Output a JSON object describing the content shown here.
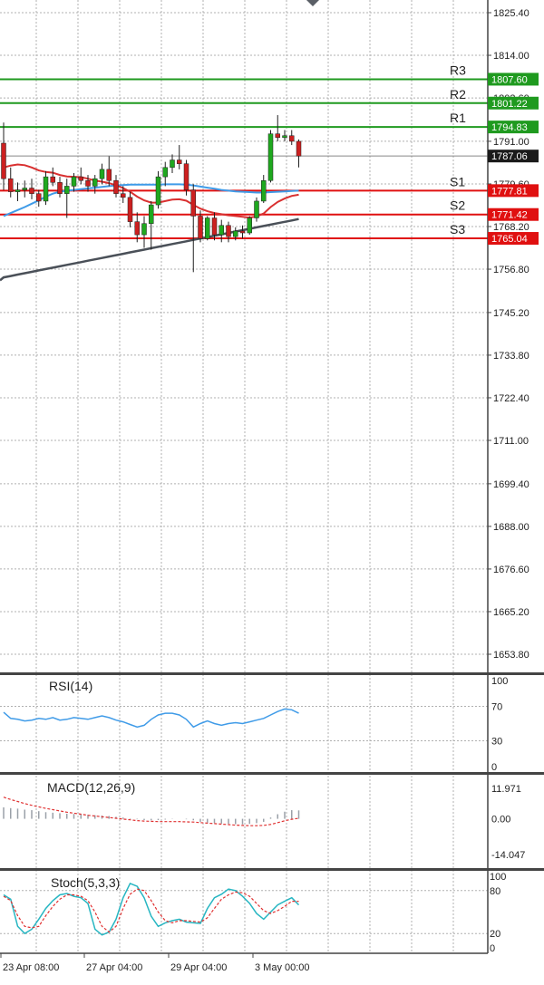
{
  "colors": {
    "background": "#ffffff",
    "grid": "#b0b0b0",
    "frame": "#444444",
    "bull_candle": "#1fa81f",
    "bear_candle": "#cc2020",
    "wick": "#202020",
    "resistance": "#1f9a1f",
    "support": "#e01010",
    "ma_slow": "#4a5058",
    "ma_mid": "#3f9be8",
    "ma_fast": "#d93030",
    "rsi_line": "#3f9be8",
    "macd_hist": "#9aa0a8",
    "macd_signal": "#e03030",
    "stoch_main": "#27b6c2",
    "stoch_signal": "#e03030",
    "current_price_line": "#888888"
  },
  "price_axis": {
    "ticks": [
      "1825.40",
      "1814.00",
      "1802.60",
      "1791.00",
      "1779.60",
      "1768.20",
      "1756.80",
      "1745.20",
      "1733.80",
      "1722.40",
      "1711.00",
      "1699.40",
      "1688.00",
      "1676.60",
      "1665.20",
      "1653.80"
    ]
  },
  "levels": [
    {
      "name": "R3",
      "value": 1807.6,
      "label": "1807.60",
      "kind": "resistance"
    },
    {
      "name": "R2",
      "value": 1801.22,
      "label": "1801.22",
      "kind": "resistance"
    },
    {
      "name": "R1",
      "value": 1794.83,
      "label": "1794.83",
      "kind": "resistance"
    },
    {
      "name": "S1",
      "value": 1777.81,
      "label": "1777.81",
      "kind": "support"
    },
    {
      "name": "S2",
      "value": 1771.42,
      "label": "1771.42",
      "kind": "support"
    },
    {
      "name": "S3",
      "value": 1765.04,
      "label": "1765.04",
      "kind": "support"
    }
  ],
  "current_price": {
    "value": 1787.06,
    "label": "1787.06"
  },
  "x_axis": {
    "labels": [
      "23 Apr 08:00",
      "27 Apr 04:00",
      "29 Apr 04:00",
      "3 May 00:00"
    ]
  },
  "panes": {
    "rsi": {
      "title": "RSI(14)",
      "ticks": [
        "100",
        "70",
        "30",
        "0"
      ]
    },
    "macd": {
      "title": "MACD(12,26,9)",
      "ticks": [
        "11.971",
        "0.00",
        "-14.047"
      ]
    },
    "stoch": {
      "title": "Stoch(5,3,3)",
      "ticks": [
        "100",
        "80",
        "20",
        "0"
      ]
    }
  },
  "chart_data": {
    "type": "candlestick",
    "title": "",
    "ylim": [
      1649.0,
      1827.0
    ],
    "candles": [
      [
        1790.5,
        1796.0,
        1778.0,
        1781.0
      ],
      [
        1781.0,
        1784.0,
        1776.0,
        1777.5
      ],
      [
        1777.5,
        1780.0,
        1775.0,
        1778.0
      ],
      [
        1778.0,
        1780.5,
        1776.0,
        1778.5
      ],
      [
        1778.5,
        1781.0,
        1775.5,
        1777.0
      ],
      [
        1777.0,
        1778.0,
        1773.5,
        1775.0
      ],
      [
        1775.0,
        1783.0,
        1774.0,
        1781.5
      ],
      [
        1781.5,
        1784.0,
        1779.0,
        1780.0
      ],
      [
        1780.0,
        1781.5,
        1776.0,
        1777.0
      ],
      [
        1777.0,
        1781.0,
        1770.5,
        1779.0
      ],
      [
        1779.0,
        1782.5,
        1777.5,
        1781.5
      ],
      [
        1781.5,
        1784.0,
        1779.5,
        1780.5
      ],
      [
        1780.5,
        1782.0,
        1777.5,
        1779.0
      ],
      [
        1779.0,
        1782.0,
        1777.0,
        1781.0
      ],
      [
        1781.0,
        1785.0,
        1779.5,
        1783.5
      ],
      [
        1783.5,
        1787.0,
        1779.0,
        1780.5
      ],
      [
        1780.5,
        1782.0,
        1776.0,
        1777.0
      ],
      [
        1777.0,
        1779.0,
        1774.5,
        1776.0
      ],
      [
        1776.0,
        1777.5,
        1768.0,
        1769.5
      ],
      [
        1769.5,
        1772.0,
        1764.0,
        1766.0
      ],
      [
        1766.0,
        1771.0,
        1762.5,
        1769.0
      ],
      [
        1769.0,
        1775.0,
        1762.0,
        1774.0
      ],
      [
        1774.0,
        1783.0,
        1773.0,
        1781.5
      ],
      [
        1781.5,
        1785.5,
        1779.0,
        1784.0
      ],
      [
        1784.0,
        1787.5,
        1782.5,
        1786.0
      ],
      [
        1786.0,
        1790.0,
        1783.5,
        1785.0
      ],
      [
        1785.0,
        1786.0,
        1776.5,
        1778.0
      ],
      [
        1778.0,
        1779.5,
        1756.0,
        1771.0
      ],
      [
        1771.0,
        1772.5,
        1764.0,
        1765.0
      ],
      [
        1765.0,
        1771.0,
        1764.5,
        1770.5
      ],
      [
        1770.5,
        1772.0,
        1764.5,
        1766.0
      ],
      [
        1766.0,
        1770.0,
        1764.0,
        1768.5
      ],
      [
        1768.5,
        1769.5,
        1764.0,
        1765.5
      ],
      [
        1765.5,
        1768.0,
        1764.5,
        1767.0
      ],
      [
        1767.0,
        1768.5,
        1765.0,
        1766.5
      ],
      [
        1766.5,
        1771.0,
        1766.0,
        1770.5
      ],
      [
        1770.5,
        1776.0,
        1769.5,
        1775.0
      ],
      [
        1775.0,
        1782.0,
        1774.5,
        1780.5
      ],
      [
        1780.5,
        1794.0,
        1780.0,
        1793.0
      ],
      [
        1793.0,
        1798.0,
        1791.0,
        1792.0
      ],
      [
        1792.0,
        1794.0,
        1791.0,
        1792.5
      ],
      [
        1792.5,
        1794.0,
        1790.0,
        1791.0
      ],
      [
        1791.0,
        1791.5,
        1784.0,
        1787.06
      ]
    ],
    "ma_fast": [
      1784.0,
      1784.5,
      1784.8,
      1784.6,
      1784.0,
      1783.2,
      1782.8,
      1782.6,
      1782.0,
      1781.6,
      1781.5,
      1781.4,
      1781.0,
      1780.5,
      1780.2,
      1779.8,
      1779.2,
      1778.5,
      1777.5,
      1776.2,
      1775.2,
      1774.6,
      1774.6,
      1775.0,
      1775.4,
      1775.5,
      1775.1,
      1774.0,
      1773.0,
      1772.3,
      1771.8,
      1771.5,
      1771.2,
      1771.0,
      1770.8,
      1770.6,
      1770.9,
      1771.7,
      1773.4,
      1774.8,
      1775.7,
      1776.4,
      1776.7
    ],
    "ma_mid": [
      1771.0,
      1771.8,
      1772.6,
      1773.4,
      1774.3,
      1775.2,
      1776.2,
      1777.0,
      1777.5,
      1777.8,
      1778.0,
      1778.2,
      1778.4,
      1778.6,
      1778.8,
      1779.0,
      1779.2,
      1779.3,
      1779.4,
      1779.4,
      1779.4,
      1779.4,
      1779.4,
      1779.5,
      1779.5,
      1779.5,
      1779.4,
      1779.2,
      1778.9,
      1778.6,
      1778.3,
      1778.0,
      1777.8,
      1777.6,
      1777.5,
      1777.4,
      1777.3,
      1777.3,
      1777.4,
      1777.5,
      1777.6,
      1777.7,
      1777.8
    ]
  },
  "indicators": {
    "rsi": [
      63,
      56,
      55,
      53,
      54,
      56,
      55,
      57,
      54,
      55,
      57,
      56,
      55,
      57,
      59,
      57,
      54,
      52,
      49,
      46,
      48,
      55,
      60,
      62,
      62,
      60,
      55,
      46,
      50,
      53,
      50,
      48,
      50,
      51,
      50,
      52,
      54,
      56,
      60,
      64,
      67,
      66,
      62
    ],
    "macd_hist": [
      4.5,
      4.2,
      4.0,
      3.6,
      3.4,
      3.0,
      2.6,
      2.4,
      2.2,
      2.0,
      1.9,
      1.8,
      1.6,
      1.4,
      1.3,
      1.1,
      0.8,
      0.5,
      0.2,
      -0.2,
      -0.5,
      -0.6,
      -0.5,
      -0.3,
      -0.1,
      0.0,
      -0.2,
      -0.6,
      -1.2,
      -1.5,
      -1.7,
      -1.9,
      -2.0,
      -2.1,
      -2.2,
      -2.0,
      -1.7,
      -1.2,
      0.5,
      1.8,
      2.8,
      3.4,
      3.3
    ],
    "macd_signal": [
      8.5,
      7.6,
      6.8,
      6.0,
      5.3,
      4.7,
      4.1,
      3.6,
      3.1,
      2.6,
      2.2,
      1.8,
      1.4,
      1.1,
      0.8,
      0.5,
      0.2,
      -0.1,
      -0.4,
      -0.7,
      -0.9,
      -1.0,
      -1.1,
      -1.1,
      -1.1,
      -1.1,
      -1.2,
      -1.3,
      -1.5,
      -1.7,
      -1.9,
      -2.1,
      -2.3,
      -2.5,
      -2.6,
      -2.7,
      -2.7,
      -2.6,
      -2.2,
      -1.5,
      -0.8,
      -0.2,
      0.2
    ],
    "stoch_k": [
      74,
      68,
      30,
      20,
      26,
      40,
      55,
      66,
      74,
      76,
      72,
      70,
      62,
      26,
      18,
      22,
      40,
      70,
      90,
      86,
      70,
      44,
      30,
      35,
      38,
      40,
      36,
      35,
      34,
      55,
      70,
      75,
      82,
      80,
      72,
      62,
      48,
      40,
      50,
      60,
      65,
      70,
      60
    ],
    "stoch_d": [
      72,
      66,
      45,
      30,
      28,
      30,
      45,
      58,
      68,
      74,
      74,
      72,
      66,
      50,
      30,
      22,
      30,
      55,
      75,
      82,
      80,
      66,
      50,
      38,
      35,
      38,
      38,
      37,
      36,
      42,
      55,
      68,
      74,
      78,
      77,
      72,
      62,
      52,
      48,
      52,
      58,
      65,
      65
    ]
  }
}
